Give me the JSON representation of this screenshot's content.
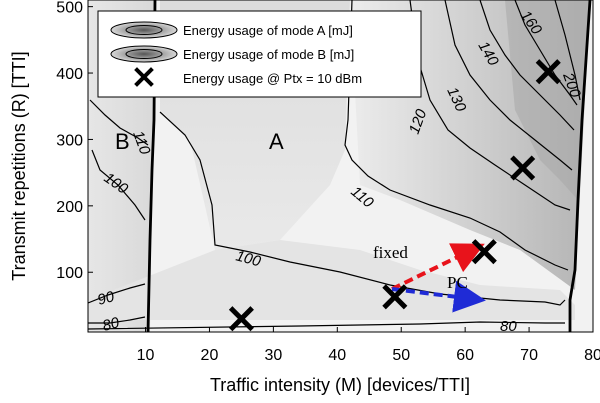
{
  "chart_data": {
    "type": "contour",
    "xlabel": "Traffic intensity (M) [devices/TTI]",
    "ylabel": "Transmit repetitions (R) [TTI]",
    "xlim": [
      1,
      80
    ],
    "ylim": [
      10,
      510
    ],
    "x_ticks": [
      10,
      20,
      30,
      40,
      50,
      60,
      70,
      80
    ],
    "y_ticks": [
      100,
      200,
      300,
      400,
      500
    ],
    "legend": [
      {
        "label": "Energy usage of mode A [mJ]",
        "marker": "contour-ellipse"
      },
      {
        "label": "Energy usage of mode B [mJ]",
        "marker": "contour-ellipse"
      },
      {
        "label": "Energy usage @ Ptx = 10 dBm",
        "marker": "x"
      }
    ],
    "legend_position": "top-left",
    "regions": [
      {
        "label": "A",
        "x": 29,
        "y": 305
      },
      {
        "label": "B",
        "x": 6,
        "y": 305
      }
    ],
    "contour_labels": [
      {
        "text": "80",
        "x": 7,
        "y": 20
      },
      {
        "text": "90",
        "x": 7,
        "y": 45
      },
      {
        "text": "100",
        "x": 7,
        "y": 200
      },
      {
        "text": "110",
        "x": 10,
        "y": 300
      },
      {
        "text": "100",
        "x": 26,
        "y": 110
      },
      {
        "text": "110",
        "x": 47,
        "y": 170
      },
      {
        "text": "120",
        "x": 56,
        "y": 320
      },
      {
        "text": "130",
        "x": 61,
        "y": 380
      },
      {
        "text": "140",
        "x": 64,
        "y": 460
      },
      {
        "text": "160",
        "x": 69,
        "y": 490
      },
      {
        "text": "200",
        "x": 75,
        "y": 380
      },
      {
        "text": "80",
        "x": 69,
        "y": 22
      }
    ],
    "points": [
      {
        "x": 25,
        "y": 30
      },
      {
        "x": 49,
        "y": 63
      },
      {
        "x": 63,
        "y": 131
      },
      {
        "x": 69,
        "y": 257
      },
      {
        "x": 73,
        "y": 402
      }
    ],
    "arrows": [
      {
        "label": "fixed",
        "from": [
          49,
          63
        ],
        "to": [
          63,
          131
        ],
        "color": "#e8131b"
      },
      {
        "label": "PC",
        "from": [
          49,
          63
        ],
        "to": [
          63,
          52
        ],
        "color": "#1f2bd6"
      }
    ]
  }
}
